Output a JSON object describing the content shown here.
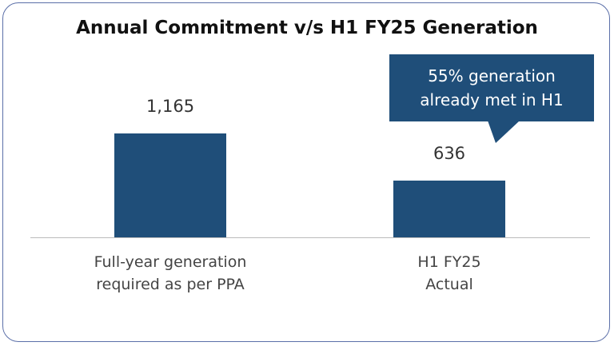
{
  "chart_data": {
    "type": "bar",
    "title": "Annual Commitment v/s H1 FY25 Generation",
    "categories": [
      "Full-year generation\nrequired as per PPA",
      "H1 FY25\nActual"
    ],
    "values": [
      1165,
      636
    ],
    "value_labels": [
      "1,165",
      "636"
    ],
    "color": "#1f4e79",
    "annotation": "55% generation\nalready met in H1"
  }
}
